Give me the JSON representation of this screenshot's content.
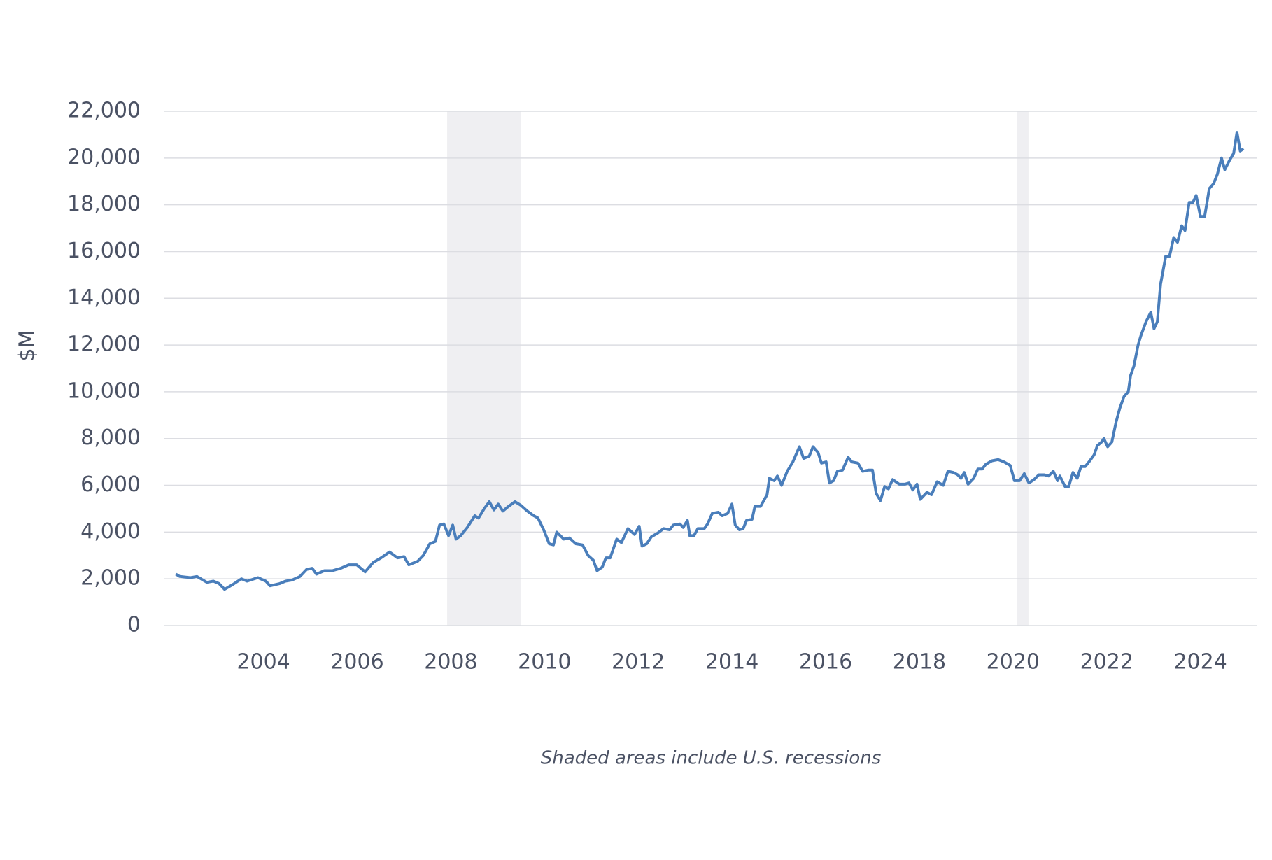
{
  "chart_data": {
    "type": "line",
    "y_label": "$M",
    "note": "Shaded areas include U.S. recessions",
    "color": "#4a7ebb",
    "grid": true,
    "recession_color": "#efeff2",
    "recessions": [
      [
        2007.92,
        2009.5
      ],
      [
        2020.08,
        2020.33
      ]
    ],
    "xlim": [
      2001.87,
      2025.2
    ],
    "xticks": [
      2004,
      2006,
      2008,
      2010,
      2012,
      2014,
      2016,
      2018,
      2020,
      2022,
      2024
    ],
    "ylim": [
      0,
      22000
    ],
    "yticks": [
      0,
      {
        "value": 2000,
        "label": "2,000"
      },
      {
        "value": 4000,
        "label": "4,000"
      },
      {
        "value": 6000,
        "label": "6,000"
      },
      {
        "value": 8000,
        "label": "8,000"
      },
      {
        "value": 10000,
        "label": "10,000"
      },
      {
        "value": 12000,
        "label": "12,000"
      },
      {
        "value": 14000,
        "label": "14,000"
      },
      {
        "value": 16000,
        "label": "16,000"
      },
      {
        "value": 18000,
        "label": "18,000"
      },
      {
        "value": 20000,
        "label": "20,000"
      },
      {
        "value": 22000,
        "label": "22,000"
      }
    ],
    "x": [
      2002.13,
      2002.21,
      2002.44,
      2002.58,
      2002.79,
      2002.93,
      2003.05,
      2003.17,
      2003.34,
      2003.53,
      2003.65,
      2003.88,
      2004.05,
      2004.14,
      2004.35,
      2004.47,
      2004.61,
      2004.78,
      2004.92,
      2005.04,
      2005.13,
      2005.3,
      2005.47,
      2005.65,
      2005.82,
      2005.99,
      2006.17,
      2006.34,
      2006.51,
      2006.69,
      2006.86,
      2007.0,
      2007.1,
      2007.29,
      2007.41,
      2007.55,
      2007.67,
      2007.76,
      2007.85,
      2007.95,
      2008.04,
      2008.11,
      2008.21,
      2008.35,
      2008.51,
      2008.59,
      2008.71,
      2008.82,
      2008.92,
      2009.01,
      2009.11,
      2009.23,
      2009.37,
      2009.49,
      2009.63,
      2009.77,
      2009.86,
      2009.98,
      2010.1,
      2010.19,
      2010.26,
      2010.41,
      2010.53,
      2010.67,
      2010.81,
      2010.93,
      2011.04,
      2011.12,
      2011.23,
      2011.31,
      2011.4,
      2011.54,
      2011.64,
      2011.78,
      2011.92,
      2012.02,
      2012.08,
      2012.18,
      2012.28,
      2012.41,
      2012.54,
      2012.67,
      2012.75,
      2012.89,
      2012.96,
      2013.05,
      2013.1,
      2013.19,
      2013.27,
      2013.41,
      2013.48,
      2013.58,
      2013.71,
      2013.79,
      2013.91,
      2014.0,
      2014.07,
      2014.16,
      2014.24,
      2014.31,
      2014.43,
      2014.49,
      2014.61,
      2014.75,
      2014.8,
      2014.9,
      2014.97,
      2015.06,
      2015.18,
      2015.3,
      2015.44,
      2015.53,
      2015.65,
      2015.73,
      2015.84,
      2015.91,
      2016.01,
      2016.08,
      2016.17,
      2016.25,
      2016.36,
      2016.48,
      2016.56,
      2016.69,
      2016.79,
      2016.91,
      2017.0,
      2017.08,
      2017.17,
      2017.26,
      2017.34,
      2017.43,
      2017.57,
      2017.69,
      2017.78,
      2017.86,
      2017.95,
      2018.02,
      2018.16,
      2018.26,
      2018.38,
      2018.51,
      2018.61,
      2018.73,
      2018.82,
      2018.89,
      2018.96,
      2019.04,
      2019.16,
      2019.25,
      2019.34,
      2019.42,
      2019.55,
      2019.68,
      2019.81,
      2019.94,
      2020.03,
      2020.14,
      2020.24,
      2020.34,
      2020.45,
      2020.55,
      2020.67,
      2020.76,
      2020.86,
      2020.95,
      2021.0,
      2021.11,
      2021.19,
      2021.28,
      2021.37,
      2021.45,
      2021.54,
      2021.64,
      2021.73,
      2021.8,
      2021.89,
      2021.94,
      2022.02,
      2022.11,
      2022.2,
      2022.28,
      2022.37,
      2022.46,
      2022.51,
      2022.58,
      2022.67,
      2022.73,
      2022.84,
      2022.94,
      2023.01,
      2023.08,
      2023.15,
      2023.26,
      2023.34,
      2023.43,
      2023.51,
      2023.6,
      2023.67,
      2023.76,
      2023.84,
      2023.91,
      2024.0,
      2024.09,
      2024.19,
      2024.28,
      2024.36,
      2024.45,
      2024.52,
      2024.62,
      2024.71,
      2024.78,
      2024.85,
      2024.92
    ],
    "values": [
      2200,
      2100,
      2050,
      2100,
      1850,
      1900,
      1800,
      1550,
      1750,
      2000,
      1900,
      2050,
      1900,
      1700,
      1800,
      1900,
      1950,
      2100,
      2400,
      2450,
      2200,
      2350,
      2350,
      2450,
      2600,
      2600,
      2300,
      2700,
      2900,
      3150,
      2900,
      2950,
      2600,
      2750,
      3000,
      3500,
      3600,
      4300,
      4350,
      3850,
      4300,
      3700,
      3850,
      4200,
      4700,
      4600,
      5000,
      5300,
      4950,
      5200,
      4900,
      5100,
      5300,
      5150,
      4900,
      4700,
      4600,
      4100,
      3500,
      3450,
      4000,
      3700,
      3750,
      3500,
      3450,
      3000,
      2800,
      2350,
      2500,
      2900,
      2900,
      3700,
      3550,
      4150,
      3900,
      4250,
      3400,
      3500,
      3800,
      3950,
      4150,
      4100,
      4300,
      4350,
      4200,
      4500,
      3850,
      3850,
      4150,
      4150,
      4350,
      4800,
      4850,
      4700,
      4800,
      5200,
      4300,
      4100,
      4150,
      4500,
      4550,
      5100,
      5100,
      5600,
      6300,
      6200,
      6400,
      6000,
      6600,
      7000,
      7650,
      7150,
      7250,
      7650,
      7400,
      6950,
      7000,
      6100,
      6200,
      6600,
      6650,
      7200,
      7000,
      6950,
      6600,
      6650,
      6650,
      5650,
      5350,
      5950,
      5850,
      6250,
      6050,
      6050,
      6100,
      5800,
      6050,
      5400,
      5700,
      5600,
      6150,
      6000,
      6600,
      6550,
      6450,
      6300,
      6550,
      6050,
      6300,
      6700,
      6700,
      6900,
      7050,
      7100,
      7000,
      6850,
      6200,
      6200,
      6500,
      6100,
      6250,
      6450,
      6450,
      6400,
      6600,
      6200,
      6400,
      5950,
      5950,
      6550,
      6300,
      6800,
      6800,
      7050,
      7300,
      7700,
      7850,
      8000,
      7650,
      7850,
      8700,
      9300,
      9800,
      10000,
      10700,
      11100,
      12000,
      12400,
      13000,
      13400,
      12700,
      13000,
      14600,
      15800,
      15800,
      16600,
      16400,
      17100,
      16900,
      18100,
      18100,
      18400,
      17500,
      17500,
      18700,
      18900,
      19300,
      20000,
      19500,
      19900,
      20200,
      21100,
      20300,
      20400
    ]
  }
}
